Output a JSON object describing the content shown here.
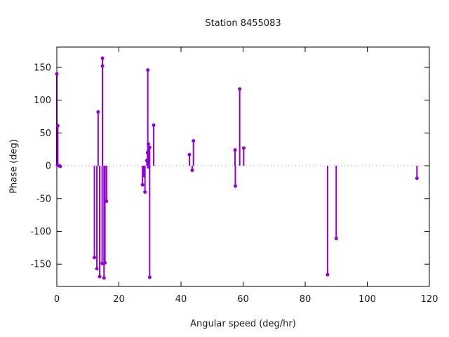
{
  "window": {
    "title": "Station 8455083"
  },
  "chart_data": {
    "type": "stem",
    "title": "Station 8455083",
    "xlabel": "Angular speed (deg/hr)",
    "ylabel": "Phase (deg)",
    "xlim": [
      0,
      120
    ],
    "ylim": [
      -184,
      181
    ],
    "xticks": [
      0,
      20,
      40,
      60,
      80,
      100,
      120
    ],
    "yticks": [
      -150,
      -100,
      -50,
      0,
      50,
      100,
      150
    ],
    "grid": false,
    "legend": null,
    "zero_line_style": "dotted",
    "zero_line_color": "#999999",
    "frame_color": "#000000",
    "point_color": "#9400d3",
    "stem_color": "#9400d3",
    "points": [
      [
        0,
        140
      ],
      [
        0.3,
        61
      ],
      [
        0.2,
        1
      ],
      [
        0.7,
        0
      ],
      [
        1.1,
        -1
      ],
      [
        13.3,
        82
      ],
      [
        14.7,
        164
      ],
      [
        14.7,
        152
      ],
      [
        16,
        -54
      ],
      [
        12.1,
        -140
      ],
      [
        12.9,
        -157
      ],
      [
        13.8,
        -169
      ],
      [
        14.6,
        -149
      ],
      [
        15.5,
        -148
      ],
      [
        15.2,
        -171
      ],
      [
        29.3,
        146
      ],
      [
        31.2,
        62
      ],
      [
        29.5,
        33
      ],
      [
        29.9,
        28
      ],
      [
        29.2,
        20
      ],
      [
        29,
        8
      ],
      [
        29.6,
        -2
      ],
      [
        28,
        -15
      ],
      [
        27.6,
        -29
      ],
      [
        28.4,
        -40
      ],
      [
        29.9,
        -170
      ],
      [
        44,
        38
      ],
      [
        42.7,
        17
      ],
      [
        43.6,
        -7
      ],
      [
        58.9,
        117
      ],
      [
        57.4,
        24
      ],
      [
        60.2,
        27
      ],
      [
        57.5,
        -31
      ],
      [
        87.2,
        -166
      ],
      [
        90,
        -111
      ],
      [
        116,
        -19
      ]
    ]
  }
}
